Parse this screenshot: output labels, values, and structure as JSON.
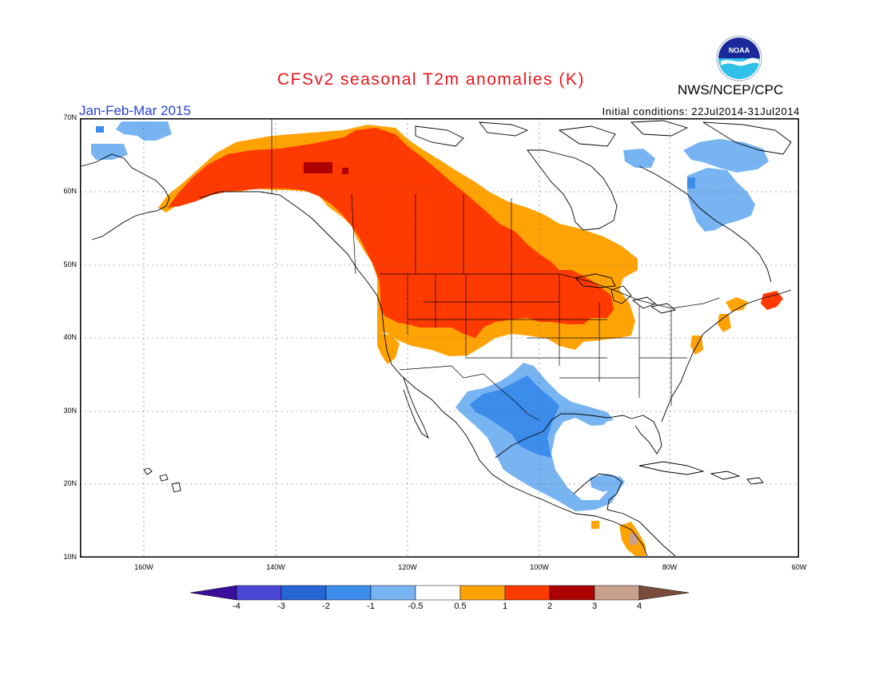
{
  "title": "CFSv2 seasonal T2m anomalies (K)",
  "agency": "NWS/NCEP/CPC",
  "logo_text": "NOAA",
  "period": "Jan-Feb-Mar 2015",
  "initial_conditions": "Initial conditions: 22Jul2014-31Jul2014",
  "lat_labels": [
    "70N",
    "60N",
    "50N",
    "40N",
    "30N",
    "20N",
    "10N"
  ],
  "lon_labels": [
    "160W",
    "140W",
    "120W",
    "100W",
    "80W",
    "60W"
  ],
  "colorbar": {
    "labels": [
      "-4",
      "-3",
      "-2",
      "-1",
      "-0.5",
      "0.5",
      "1",
      "2",
      "3",
      "4"
    ],
    "colors": [
      "#3b0e9c",
      "#4a46d6",
      "#2566d4",
      "#3b8ceb",
      "#78b4f2",
      "#ffffff",
      "#ffa305",
      "#ff3a00",
      "#ad0000",
      "#c8a08c",
      "#7a4c3c"
    ]
  },
  "anomaly_regions": [
    {
      "name": "alaska-yukon-canada-warm",
      "category": "0.5-1",
      "color": "#ffa305"
    },
    {
      "name": "western-canada-northwest-us",
      "category": "1-2",
      "color": "#ff3a00"
    },
    {
      "name": "yukon-hotspot",
      "category": "2-3",
      "color": "#ad0000"
    },
    {
      "name": "mexico-southern-us-cool",
      "category": "-1--0.5",
      "color": "#78b4f2"
    },
    {
      "name": "northern-mexico-cool",
      "category": "-2--1",
      "color": "#3b8ceb"
    },
    {
      "name": "hudson-quebec-cool",
      "category": "-1--0.5",
      "color": "#78b4f2"
    },
    {
      "name": "bering-arctic-cool",
      "category": "-1--0.5",
      "color": "#78b4f2"
    },
    {
      "name": "central-america-warm",
      "category": "0.5-1",
      "color": "#ffa305"
    },
    {
      "name": "maritimes-warm",
      "category": "0.5-2",
      "color": "#ffa305"
    }
  ]
}
